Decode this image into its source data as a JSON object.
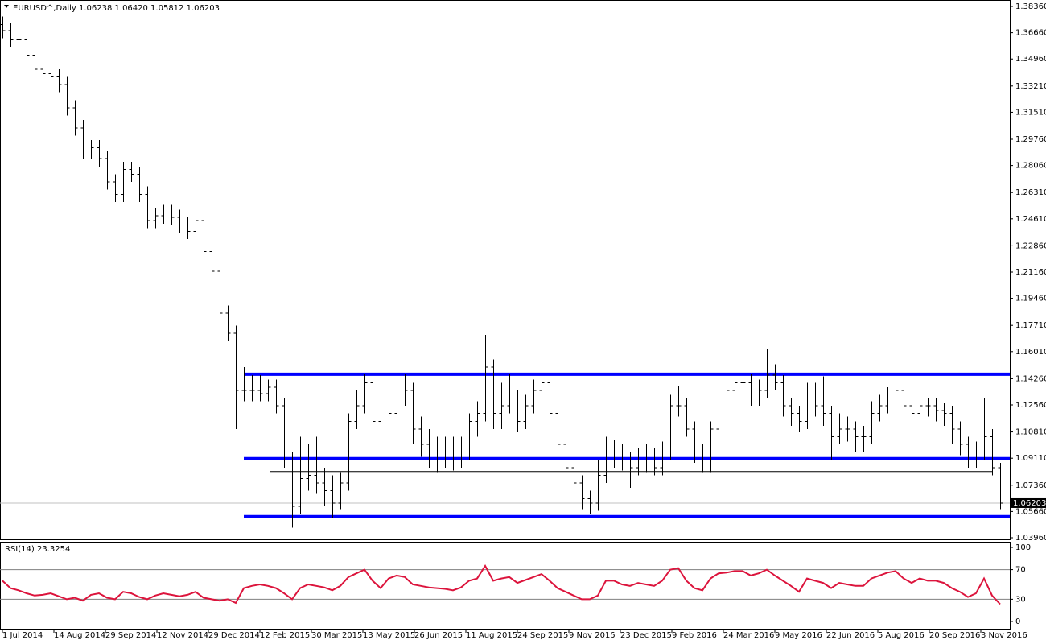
{
  "chart_data": [
    {
      "type": "ohlc",
      "title": "EURUSD^,Daily  1.06238 1.06420 1.05812 1.06203",
      "color": "#000000",
      "x": [
        0,
        5,
        10,
        15,
        20,
        25,
        30,
        35,
        40,
        45,
        50,
        55,
        60,
        65,
        70,
        75,
        80,
        85,
        90,
        95,
        100,
        105,
        110,
        115,
        120,
        125,
        130,
        135,
        140,
        145,
        150,
        155,
        160,
        165,
        170,
        175,
        180,
        185,
        190,
        195,
        200,
        205,
        210,
        215,
        220,
        225,
        230,
        235,
        240,
        245,
        250,
        255,
        260,
        265,
        270,
        275,
        280,
        285,
        290,
        295,
        300,
        305,
        310,
        315,
        320,
        325,
        330,
        335,
        340,
        345,
        350,
        355,
        360,
        365,
        370,
        375,
        380,
        385,
        390,
        395,
        400,
        405,
        410,
        415,
        420,
        425,
        430,
        435,
        440,
        445,
        450,
        455,
        460,
        465,
        470,
        475,
        480,
        485,
        490,
        495,
        500,
        505,
        510,
        515,
        520,
        525,
        530,
        535,
        540,
        545,
        550,
        555,
        560,
        565,
        570,
        575,
        580,
        585,
        590,
        595,
        600,
        605,
        610,
        615,
        620
      ],
      "open": [
        1.372,
        1.368,
        1.362,
        1.362,
        1.352,
        1.343,
        1.34,
        1.338,
        1.333,
        1.318,
        1.305,
        1.29,
        1.292,
        1.285,
        1.27,
        1.262,
        1.278,
        1.275,
        1.262,
        1.245,
        1.248,
        1.25,
        1.247,
        1.242,
        1.238,
        1.245,
        1.225,
        1.212,
        1.185,
        1.172,
        1.135,
        1.135,
        1.135,
        1.133,
        1.137,
        1.125,
        1.09,
        1.06,
        1.078,
        1.08,
        1.075,
        1.07,
        1.062,
        1.075,
        1.115,
        1.125,
        1.14,
        1.115,
        1.095,
        1.12,
        1.13,
        1.135,
        1.11,
        1.1,
        1.095,
        1.095,
        1.095,
        1.09,
        1.095,
        1.115,
        1.12,
        1.15,
        1.12,
        1.125,
        1.13,
        1.115,
        1.125,
        1.135,
        1.14,
        1.12,
        1.1,
        1.085,
        1.075,
        1.065,
        1.062,
        1.08,
        1.095,
        1.09,
        1.09,
        1.085,
        1.09,
        1.09,
        1.085,
        1.095,
        1.125,
        1.125,
        1.11,
        1.095,
        1.09,
        1.11,
        1.13,
        1.135,
        1.14,
        1.14,
        1.13,
        1.135,
        1.145,
        1.14,
        1.125,
        1.12,
        1.115,
        1.13,
        1.125,
        1.12,
        1.105,
        1.11,
        1.11,
        1.105,
        1.105,
        1.12,
        1.125,
        1.13,
        1.135,
        1.125,
        1.12,
        1.125,
        1.125,
        1.122,
        1.12,
        1.11,
        1.1,
        1.09,
        1.095,
        1.105,
        1.085
      ],
      "high": [
        1.377,
        1.373,
        1.367,
        1.367,
        1.357,
        1.348,
        1.345,
        1.343,
        1.338,
        1.323,
        1.31,
        1.297,
        1.297,
        1.29,
        1.275,
        1.283,
        1.283,
        1.28,
        1.267,
        1.253,
        1.255,
        1.255,
        1.252,
        1.247,
        1.25,
        1.25,
        1.23,
        1.217,
        1.19,
        1.177,
        1.15,
        1.145,
        1.145,
        1.142,
        1.142,
        1.13,
        1.095,
        1.105,
        1.1,
        1.105,
        1.085,
        1.08,
        1.082,
        1.12,
        1.135,
        1.146,
        1.145,
        1.12,
        1.13,
        1.14,
        1.146,
        1.14,
        1.118,
        1.11,
        1.105,
        1.105,
        1.105,
        1.105,
        1.12,
        1.128,
        1.171,
        1.155,
        1.14,
        1.146,
        1.135,
        1.132,
        1.142,
        1.149,
        1.145,
        1.125,
        1.105,
        1.09,
        1.08,
        1.07,
        1.09,
        1.105,
        1.103,
        1.1,
        1.095,
        1.098,
        1.1,
        1.098,
        1.102,
        1.132,
        1.138,
        1.13,
        1.115,
        1.1,
        1.115,
        1.138,
        1.14,
        1.146,
        1.147,
        1.146,
        1.142,
        1.162,
        1.152,
        1.145,
        1.13,
        1.125,
        1.14,
        1.14,
        1.144,
        1.125,
        1.12,
        1.118,
        1.115,
        1.112,
        1.128,
        1.132,
        1.137,
        1.14,
        1.138,
        1.13,
        1.13,
        1.13,
        1.13,
        1.127,
        1.125,
        1.115,
        1.105,
        1.102,
        1.13,
        1.11,
        1.088
      ],
      "low": [
        1.363,
        1.357,
        1.357,
        1.347,
        1.338,
        1.335,
        1.333,
        1.328,
        1.313,
        1.3,
        1.285,
        1.285,
        1.28,
        1.265,
        1.257,
        1.257,
        1.27,
        1.257,
        1.24,
        1.24,
        1.243,
        1.242,
        1.237,
        1.233,
        1.233,
        1.22,
        1.207,
        1.18,
        1.167,
        1.11,
        1.128,
        1.128,
        1.128,
        1.128,
        1.12,
        1.085,
        1.046,
        1.055,
        1.07,
        1.068,
        1.06,
        1.052,
        1.058,
        1.07,
        1.11,
        1.12,
        1.11,
        1.085,
        1.09,
        1.115,
        1.125,
        1.1,
        1.092,
        1.085,
        1.082,
        1.085,
        1.083,
        1.085,
        1.09,
        1.105,
        1.115,
        1.11,
        1.11,
        1.12,
        1.108,
        1.11,
        1.12,
        1.13,
        1.115,
        1.095,
        1.08,
        1.068,
        1.058,
        1.055,
        1.057,
        1.075,
        1.085,
        1.083,
        1.072,
        1.08,
        1.082,
        1.08,
        1.08,
        1.09,
        1.118,
        1.105,
        1.088,
        1.082,
        1.082,
        1.105,
        1.125,
        1.13,
        1.132,
        1.125,
        1.125,
        1.13,
        1.135,
        1.118,
        1.112,
        1.108,
        1.11,
        1.118,
        1.112,
        1.09,
        1.1,
        1.102,
        1.095,
        1.095,
        1.1,
        1.115,
        1.12,
        1.125,
        1.118,
        1.112,
        1.115,
        1.118,
        1.115,
        1.112,
        1.1,
        1.093,
        1.085,
        1.085,
        1.09,
        1.08,
        1.058
      ],
      "close": [
        1.368,
        1.362,
        1.362,
        1.352,
        1.343,
        1.34,
        1.338,
        1.333,
        1.318,
        1.305,
        1.29,
        1.292,
        1.285,
        1.27,
        1.262,
        1.278,
        1.275,
        1.262,
        1.245,
        1.248,
        1.25,
        1.247,
        1.242,
        1.238,
        1.245,
        1.225,
        1.212,
        1.185,
        1.172,
        1.135,
        1.135,
        1.135,
        1.133,
        1.137,
        1.125,
        1.09,
        1.06,
        1.078,
        1.08,
        1.075,
        1.07,
        1.062,
        1.075,
        1.115,
        1.125,
        1.14,
        1.115,
        1.095,
        1.12,
        1.13,
        1.135,
        1.11,
        1.1,
        1.095,
        1.095,
        1.095,
        1.09,
        1.095,
        1.115,
        1.12,
        1.15,
        1.12,
        1.125,
        1.13,
        1.115,
        1.125,
        1.135,
        1.14,
        1.12,
        1.1,
        1.085,
        1.075,
        1.065,
        1.062,
        1.08,
        1.095,
        1.09,
        1.09,
        1.085,
        1.09,
        1.09,
        1.085,
        1.095,
        1.125,
        1.125,
        1.11,
        1.095,
        1.09,
        1.11,
        1.13,
        1.135,
        1.14,
        1.14,
        1.13,
        1.135,
        1.145,
        1.14,
        1.125,
        1.12,
        1.115,
        1.13,
        1.125,
        1.12,
        1.105,
        1.11,
        1.11,
        1.105,
        1.105,
        1.12,
        1.125,
        1.13,
        1.135,
        1.125,
        1.12,
        1.125,
        1.125,
        1.122,
        1.12,
        1.11,
        1.1,
        1.09,
        1.095,
        1.105,
        1.085,
        1.062
      ],
      "xlim": [
        -1.5,
        626
      ],
      "ylim": [
        1.03856,
        1.38777
      ],
      "yticks": [
        {
          "value": 1.3836,
          "label": "1.38360"
        },
        {
          "value": 1.3666,
          "label": "1.36660"
        },
        {
          "value": 1.3496,
          "label": "1.34960"
        },
        {
          "value": 1.3321,
          "label": "1.33210"
        },
        {
          "value": 1.3151,
          "label": "1.31510"
        },
        {
          "value": 1.2976,
          "label": "1.29760"
        },
        {
          "value": 1.2806,
          "label": "1.28060"
        },
        {
          "value": 1.2631,
          "label": "1.26310"
        },
        {
          "value": 1.2461,
          "label": "1.24610"
        },
        {
          "value": 1.2286,
          "label": "1.22860"
        },
        {
          "value": 1.2116,
          "label": "1.21160"
        },
        {
          "value": 1.1946,
          "label": "1.19460"
        },
        {
          "value": 1.1771,
          "label": "1.17710"
        },
        {
          "value": 1.1601,
          "label": "1.16010"
        },
        {
          "value": 1.1426,
          "label": "1.14260"
        },
        {
          "value": 1.1256,
          "label": "1.12560"
        },
        {
          "value": 1.1081,
          "label": "1.10810"
        },
        {
          "value": 1.0911,
          "label": "1.09110"
        },
        {
          "value": 1.0736,
          "label": "1.07360"
        },
        {
          "value": 1.0566,
          "label": "1.05660"
        },
        {
          "value": 1.0396,
          "label": "1.03960"
        }
      ],
      "levels": [
        {
          "value": 1.1455,
          "color": "#0000ff",
          "width": 4,
          "x": [
            150,
            626
          ]
        },
        {
          "value": 1.0908,
          "color": "#0000ff",
          "width": 4,
          "x": [
            150,
            626
          ]
        },
        {
          "value": 1.0533,
          "color": "#0000ff",
          "width": 4,
          "x": [
            150,
            626
          ]
        },
        {
          "value": 1.0825,
          "color": "#000000",
          "width": 1,
          "x": [
            166,
            615
          ]
        }
      ],
      "last_price": 1.06203
    },
    {
      "type": "line",
      "title": "RSI(14) 23.3254",
      "color": "#dc143c",
      "x": [
        0,
        5,
        10,
        15,
        20,
        25,
        30,
        35,
        40,
        45,
        50,
        55,
        60,
        65,
        70,
        75,
        80,
        85,
        90,
        95,
        100,
        105,
        110,
        115,
        120,
        125,
        130,
        135,
        140,
        145,
        150,
        155,
        160,
        165,
        170,
        175,
        180,
        185,
        190,
        195,
        200,
        205,
        210,
        215,
        220,
        225,
        230,
        235,
        240,
        245,
        250,
        255,
        260,
        265,
        270,
        275,
        280,
        285,
        290,
        295,
        300,
        305,
        310,
        315,
        320,
        325,
        330,
        335,
        340,
        345,
        350,
        355,
        360,
        365,
        370,
        375,
        380,
        385,
        390,
        395,
        400,
        405,
        410,
        415,
        420,
        425,
        430,
        435,
        440,
        445,
        450,
        455,
        460,
        465,
        470,
        475,
        480,
        485,
        490,
        495,
        500,
        505,
        510,
        515,
        520,
        525,
        530,
        535,
        540,
        545,
        550,
        555,
        560,
        565,
        570,
        575,
        580,
        585,
        590,
        595,
        600,
        605,
        610,
        615,
        620
      ],
      "values": [
        55,
        45,
        42,
        38,
        35,
        36,
        38,
        34,
        30,
        32,
        28,
        36,
        38,
        32,
        30,
        40,
        38,
        33,
        30,
        35,
        38,
        36,
        34,
        36,
        40,
        32,
        30,
        28,
        30,
        25,
        45,
        48,
        50,
        48,
        45,
        38,
        30,
        45,
        50,
        48,
        46,
        42,
        48,
        60,
        65,
        70,
        55,
        45,
        58,
        62,
        60,
        50,
        48,
        46,
        45,
        44,
        42,
        46,
        55,
        58,
        75,
        55,
        58,
        60,
        52,
        56,
        60,
        64,
        55,
        45,
        40,
        35,
        30,
        30,
        35,
        55,
        55,
        50,
        48,
        52,
        50,
        48,
        55,
        70,
        72,
        55,
        45,
        42,
        58,
        65,
        66,
        68,
        68,
        62,
        65,
        70,
        62,
        55,
        48,
        40,
        58,
        55,
        52,
        45,
        52,
        50,
        48,
        48,
        58,
        62,
        66,
        68,
        58,
        52,
        58,
        55,
        55,
        52,
        45,
        40,
        33,
        38,
        58,
        35,
        23.3254
      ],
      "xlim": [
        -1.5,
        626
      ],
      "ylim": [
        -10.9,
        107.6
      ],
      "yticks": [
        0,
        30,
        70,
        100
      ],
      "levels": [
        30,
        70
      ],
      "xticks": [
        {
          "value": 0,
          "label": "1 Jul 2014"
        },
        {
          "value": 32,
          "label": "14 Aug 2014"
        },
        {
          "value": 64,
          "label": "29 Sep 2014"
        },
        {
          "value": 96,
          "label": "12 Nov 2014"
        },
        {
          "value": 128,
          "label": "29 Dec 2014"
        },
        {
          "value": 160,
          "label": "12 Feb 2015"
        },
        {
          "value": 192,
          "label": "30 Mar 2015"
        },
        {
          "value": 224,
          "label": "13 May 2015"
        },
        {
          "value": 256,
          "label": "26 Jun 2015"
        },
        {
          "value": 288,
          "label": "11 Aug 2015"
        },
        {
          "value": 320,
          "label": "24 Sep 2015"
        },
        {
          "value": 352,
          "label": "9 Nov 2015"
        },
        {
          "value": 384,
          "label": "23 Dec 2015"
        },
        {
          "value": 416,
          "label": "9 Feb 2016"
        },
        {
          "value": 448,
          "label": "24 Mar 2016"
        },
        {
          "value": 480,
          "label": "9 May 2016"
        },
        {
          "value": 512,
          "label": "22 Jun 2016"
        },
        {
          "value": 544,
          "label": "5 Aug 2016"
        },
        {
          "value": 576,
          "label": "20 Sep 2016"
        },
        {
          "value": 608,
          "label": "3 Nov 2016"
        }
      ]
    }
  ]
}
